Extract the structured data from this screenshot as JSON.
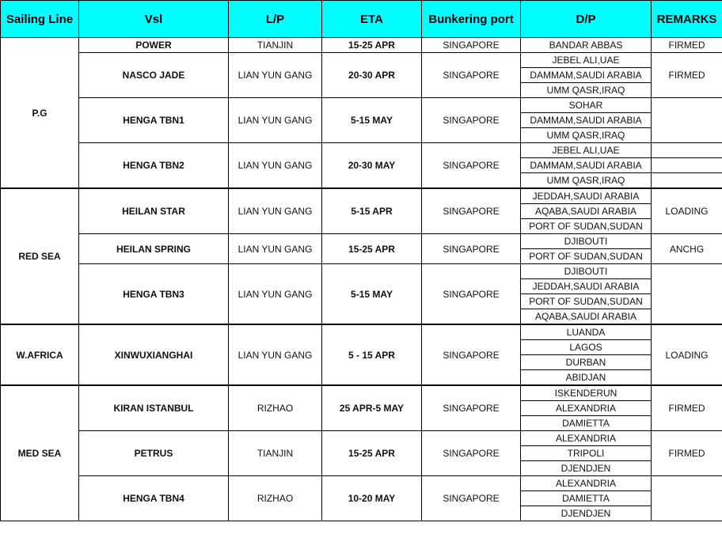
{
  "colors": {
    "header_bg": "#00ffff",
    "border": "#000000"
  },
  "headers": [
    "Sailing Line",
    "Vsl",
    "L/P",
    "ETA",
    "Bunkering port",
    "D/P",
    "REMARKS"
  ],
  "regions": [
    {
      "name": "P.G",
      "vessels": [
        {
          "vsl": "POWER",
          "lp": "TIANJIN",
          "eta": "15-25 APR",
          "bunkering": "SINGAPORE",
          "dp": [
            "BANDAR ABBAS"
          ],
          "remarks": "FIRMED",
          "span": 2
        },
        {
          "vsl": "NASCO JADE",
          "lp": "LIAN YUN GANG",
          "eta": "20-30 APR",
          "bunkering": "SINGAPORE",
          "dp": [
            "JEBEL ALI,UAE",
            "DAMMAM,SAUDI ARABIA",
            "UMM QASR,IRAQ"
          ],
          "remarks": "FIRMED"
        },
        {
          "vsl": "HENGA TBN1",
          "lp": "LIAN YUN GANG",
          "eta": "5-15 MAY",
          "bunkering": "SINGAPORE",
          "dp": [
            "SOHAR",
            "DAMMAM,SAUDI ARABIA",
            "UMM QASR,IRAQ"
          ],
          "remarks": ""
        },
        {
          "vsl": "HENGA TBN2",
          "lp": "LIAN YUN GANG",
          "eta": "20-30 MAY",
          "bunkering": "SINGAPORE",
          "dp": [
            "JEBEL ALI,UAE",
            "DAMMAM,SAUDI ARABIA",
            "UMM QASR,IRAQ"
          ],
          "remarks": "",
          "remarks_split": true
        }
      ]
    },
    {
      "name": "RED SEA",
      "vessels": [
        {
          "vsl": "HEILAN STAR",
          "lp": "LIAN YUN GANG",
          "eta": "5-15 APR",
          "bunkering": "SINGAPORE",
          "dp": [
            "JEDDAH,SAUDI ARABIA",
            "AQABA,SAUDI ARABIA",
            "PORT OF SUDAN,SUDAN"
          ],
          "remarks": "LOADING"
        },
        {
          "vsl": "HEILAN SPRING",
          "lp": "LIAN YUN GANG",
          "eta": "15-25 APR",
          "bunkering": "SINGAPORE",
          "dp": [
            "DJIBOUTI",
            "PORT OF SUDAN,SUDAN"
          ],
          "remarks": "ANCHG"
        },
        {
          "vsl": "HENGA TBN3",
          "lp": "LIAN YUN GANG",
          "eta": "5-15 MAY",
          "bunkering": "SINGAPORE",
          "dp": [
            "DJIBOUTI",
            "JEDDAH,SAUDI ARABIA",
            "PORT OF SUDAN,SUDAN",
            "AQABA,SAUDI ARABIA"
          ],
          "remarks": ""
        }
      ]
    },
    {
      "name": "W.AFRICA",
      "vessels": [
        {
          "vsl": "XINWUXIANGHAI",
          "lp": "LIAN YUN GANG",
          "eta": "5 - 15 APR",
          "bunkering": "SINGAPORE",
          "dp": [
            "LUANDA",
            "LAGOS",
            "DURBAN",
            "ABIDJAN"
          ],
          "remarks": "LOADING"
        }
      ]
    },
    {
      "name": "MED SEA",
      "vessels": [
        {
          "vsl": "KIRAN ISTANBUL",
          "lp": "RIZHAO",
          "eta": "25 APR-5 MAY",
          "bunkering": "SINGAPORE",
          "dp": [
            "ISKENDERUN",
            "ALEXANDRIA",
            "DAMIETTA"
          ],
          "remarks": "FIRMED"
        },
        {
          "vsl": "PETRUS",
          "lp": "TIANJIN",
          "eta": "15-25 APR",
          "bunkering": "SINGAPORE",
          "dp": [
            "ALEXANDRIA",
            "TRIPOLI",
            "DJENDJEN"
          ],
          "remarks": "FIRMED"
        },
        {
          "vsl": "HENGA TBN4",
          "lp": "RIZHAO",
          "eta": "10-20 MAY",
          "bunkering": "SINGAPORE",
          "dp": [
            "ALEXANDRIA",
            "DAMIETTA",
            "DJENDJEN"
          ],
          "remarks": ""
        }
      ]
    }
  ]
}
